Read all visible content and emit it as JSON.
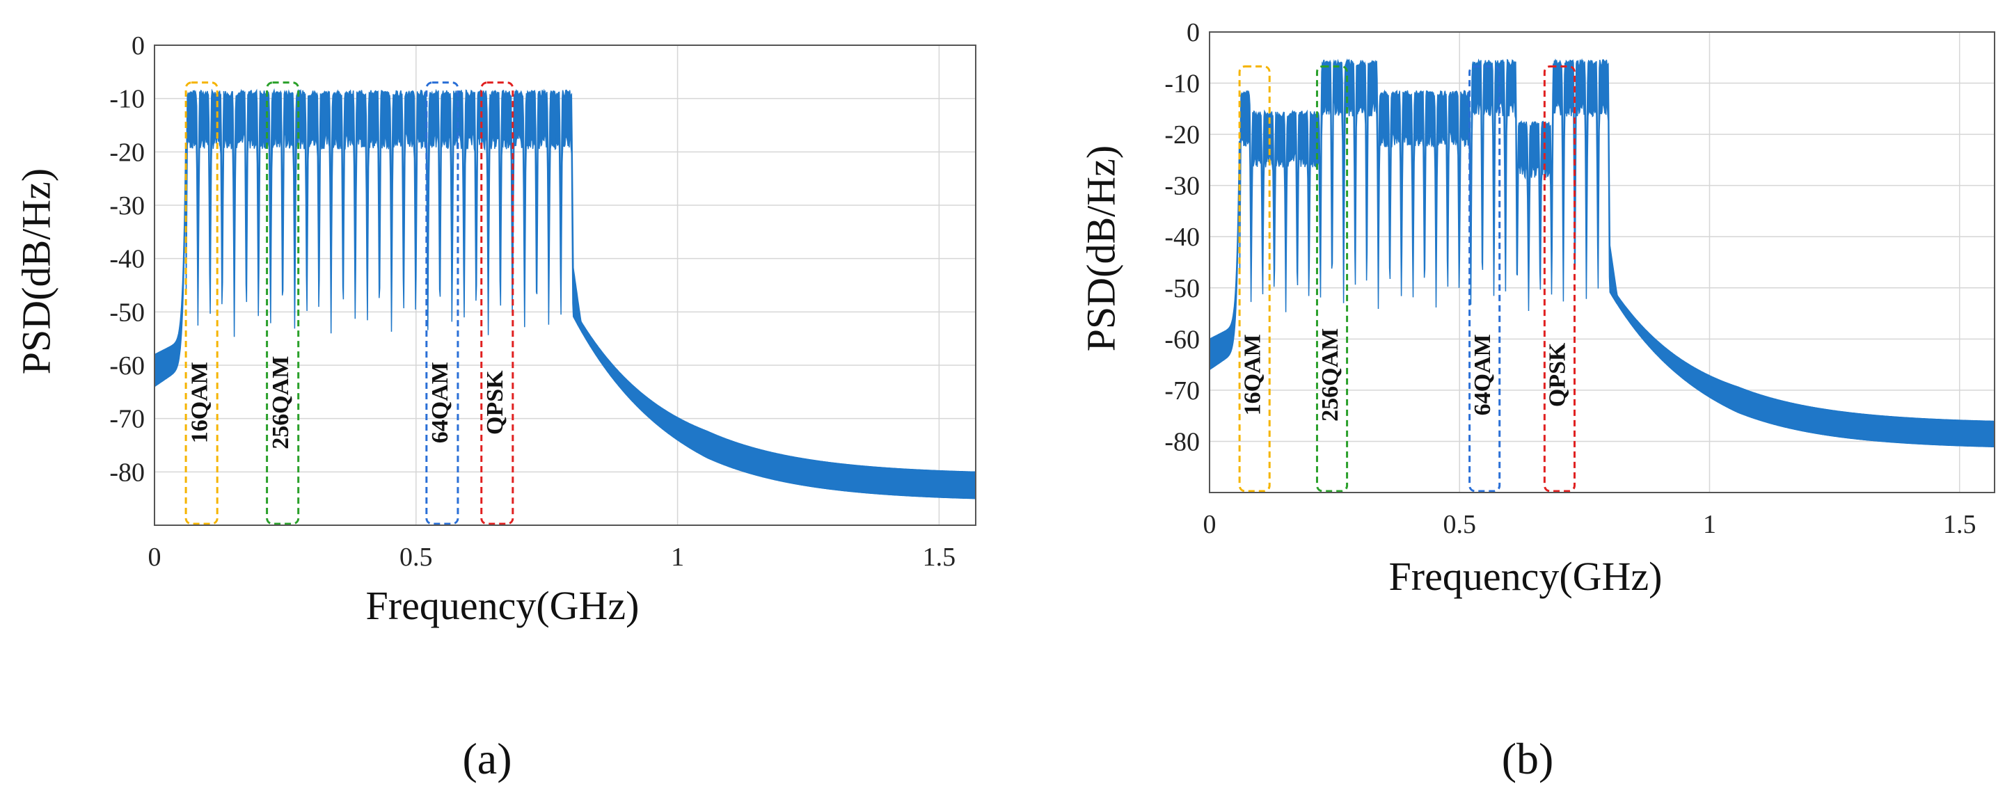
{
  "chart_data": [
    {
      "id": "a",
      "type": "line",
      "panel_label": "(a)",
      "xlabel": "Frequency(GHz)",
      "ylabel": "PSD(dB/Hz)",
      "xlim": [
        0,
        1.57
      ],
      "ylim": [
        -90,
        0
      ],
      "xticks": [
        0,
        0.5,
        1,
        1.5
      ],
      "xtick_labels": [
        "0",
        "0.5",
        "1",
        "1.5"
      ],
      "yticks": [
        0,
        -10,
        -20,
        -30,
        -40,
        -50,
        -60,
        -70,
        -80
      ],
      "ytick_labels": [
        "0",
        "-10",
        "-20",
        "-30",
        "-40",
        "-50",
        "-60",
        "-70",
        "-80"
      ],
      "series_color": "#1f77c8",
      "spectrum": {
        "noise_floor_start": -59,
        "band_start_ghz": 0.06,
        "band_end_ghz": 0.8,
        "num_subcarriers": 32,
        "subcarrier_top_db": [
          -9,
          -9,
          -9,
          -9,
          -9,
          -9,
          -9,
          -9,
          -9,
          -9,
          -9,
          -9,
          -9,
          -9,
          -9,
          -9,
          -9,
          -9,
          -9,
          -9,
          -9,
          -9,
          -9,
          -9,
          -9,
          -9,
          -9,
          -9,
          -9,
          -9,
          -9,
          -9
        ],
        "gap_min_db": -53,
        "tail_end_db": -83
      },
      "annotations": [
        {
          "label": "16QAM",
          "x_start": 0.06,
          "x_end": 0.12,
          "color": "#f5b400"
        },
        {
          "label": "256QAM",
          "x_start": 0.215,
          "x_end": 0.275,
          "color": "#2aa02a"
        },
        {
          "label": "64QAM",
          "x_start": 0.52,
          "x_end": 0.58,
          "color": "#2a6fd6"
        },
        {
          "label": "QPSK",
          "x_start": 0.625,
          "x_end": 0.685,
          "color": "#e02020"
        }
      ]
    },
    {
      "id": "b",
      "type": "line",
      "panel_label": "(b)",
      "xlabel": "Frequency(GHz)",
      "ylabel": "PSD(dB/Hz)",
      "xlim": [
        0,
        1.57
      ],
      "ylim": [
        -90,
        0
      ],
      "xticks": [
        0,
        0.5,
        1,
        1.5
      ],
      "xtick_labels": [
        "0",
        "0.5",
        "1",
        "1.5"
      ],
      "yticks": [
        0,
        -10,
        -20,
        -30,
        -40,
        -50,
        -60,
        -70,
        -80
      ],
      "ytick_labels": [
        "0",
        "-10",
        "-20",
        "-30",
        "-40",
        "-50",
        "-60",
        "-70",
        "-80"
      ],
      "series_color": "#1f77c8",
      "spectrum": {
        "noise_floor_start": -61,
        "band_start_ghz": 0.06,
        "band_end_ghz": 0.8,
        "num_subcarriers": 32,
        "subcarrier_top_db": [
          -12,
          -16,
          -16,
          -16,
          -16,
          -16,
          -16,
          -6,
          -6,
          -6,
          -6,
          -6,
          -12,
          -12,
          -12,
          -12,
          -12,
          -12,
          -12,
          -12,
          -6,
          -6,
          -6,
          -6,
          -18,
          -18,
          -18,
          -6,
          -6,
          -6,
          -6,
          -6
        ],
        "gap_min_db": -53,
        "tail_end_db": -79
      },
      "annotations": [
        {
          "label": "16QAM",
          "x_start": 0.06,
          "x_end": 0.12,
          "color": "#f5b400"
        },
        {
          "label": "256QAM",
          "x_start": 0.215,
          "x_end": 0.275,
          "color": "#2aa02a"
        },
        {
          "label": "64QAM",
          "x_start": 0.52,
          "x_end": 0.58,
          "color": "#2a6fd6"
        },
        {
          "label": "QPSK",
          "x_start": 0.67,
          "x_end": 0.73,
          "color": "#e02020"
        }
      ]
    }
  ]
}
